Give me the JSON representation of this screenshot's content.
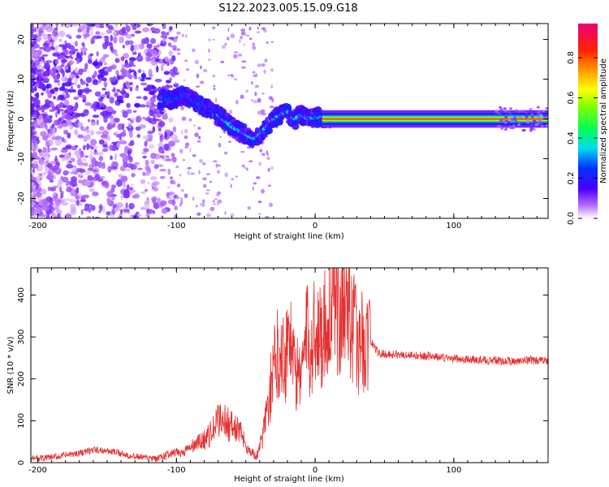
{
  "title": "S122.2023.005.15.09.G18",
  "chart_data": [
    {
      "type": "heatmap",
      "xlabel": "Height of straight line (km)",
      "ylabel": "Frequency (Hz)",
      "xlim": [
        -205,
        168
      ],
      "ylim": [
        -25,
        24
      ],
      "xticks": [
        -200,
        -100,
        0,
        100
      ],
      "yticks": [
        -20,
        -10,
        0,
        10,
        20
      ],
      "colorbar": {
        "label": "Normalized spectral amplitude",
        "range": [
          0.0,
          0.97
        ],
        "ticks": [
          0.0,
          0.2,
          0.4,
          0.6,
          0.8
        ]
      },
      "ridge": {
        "x": [
          -110,
          -100,
          -95,
          -90,
          -80,
          -70,
          -60,
          -50,
          -43,
          -38,
          -30,
          -25,
          -20,
          -15,
          -10,
          -5,
          0,
          5,
          10,
          20,
          30,
          60,
          100,
          130,
          168
        ],
        "y": [
          5,
          5,
          6,
          5,
          3,
          1,
          -2,
          -4,
          -5,
          -3,
          0,
          1,
          2,
          0,
          1,
          0,
          0.5,
          0.3,
          0,
          0,
          0,
          0,
          0,
          0,
          0
        ]
      }
    },
    {
      "type": "line",
      "xlabel": "Height of straight line (km)",
      "ylabel": "SNR (10 * v/v)",
      "xlim": [
        -205,
        168
      ],
      "ylim": [
        0,
        465
      ],
      "xticks": [
        -200,
        -100,
        0,
        100
      ],
      "yticks": [
        0,
        100,
        200,
        300,
        400
      ],
      "series": [
        {
          "color": "#e53030",
          "x": [
            -205,
            -190,
            -175,
            -160,
            -150,
            -140,
            -130,
            -115,
            -105,
            -95,
            -88,
            -80,
            -75,
            -68,
            -62,
            -56,
            -52,
            -48,
            -42,
            -38,
            -34,
            -30,
            -26,
            -22,
            -18,
            -14,
            -10,
            -6,
            -3,
            0,
            4,
            8,
            12,
            16,
            20,
            24,
            30,
            36,
            40,
            46,
            60,
            80,
            100,
            120,
            140,
            155,
            168
          ],
          "y": [
            10,
            12,
            20,
            30,
            28,
            22,
            15,
            8,
            20,
            25,
            40,
            55,
            70,
            110,
            90,
            80,
            60,
            30,
            15,
            60,
            140,
            220,
            280,
            250,
            320,
            200,
            230,
            300,
            260,
            330,
            300,
            340,
            380,
            360,
            380,
            390,
            285,
            290,
            290,
            260,
            258,
            255,
            248,
            245,
            242,
            245,
            242
          ]
        }
      ]
    }
  ]
}
